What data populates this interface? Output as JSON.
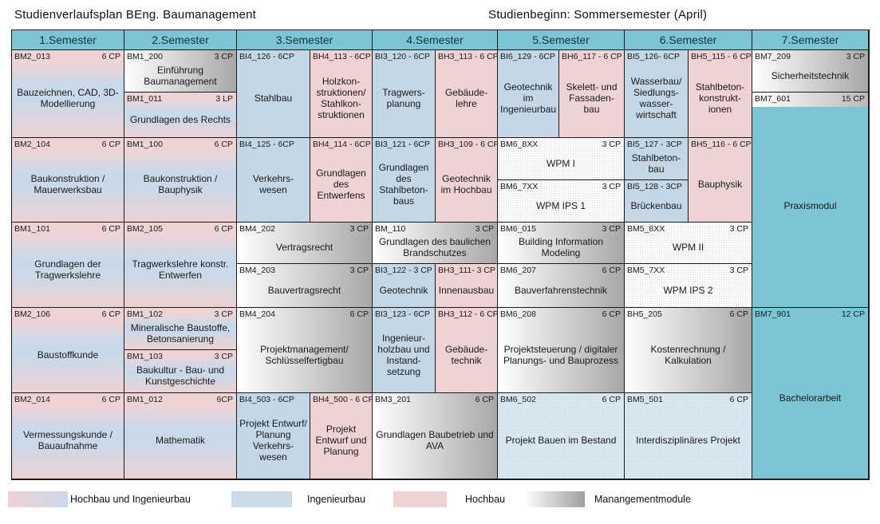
{
  "title_left": "Studienverlaufsplan BEng. Baumanagement",
  "title_right": "Studienbeginn: Sommersemester (April)",
  "semesters": [
    "1.Semester",
    "2.Semester",
    "3.Semester",
    "4.Semester",
    "5.Semester",
    "6.Semester",
    "7.Semester"
  ],
  "colors": {
    "header_teal": "#7bc5d7",
    "ingenieurbau_blue": "#c3d7e7",
    "hochbau_pink": "#efd2d4",
    "management_gray_end": "#a8a8a8",
    "projekt_pale_blue": "#d9e8f0",
    "praxis_teal": "#7bc5d7"
  },
  "legend": [
    {
      "label": "Hochbau und Ingenieurbau",
      "category": "hochbau-und-ingenieurbau"
    },
    {
      "label": "Ingenieurbau",
      "category": "ingenieurbau"
    },
    {
      "label": "Hochbau",
      "category": "hochbau"
    },
    {
      "label": "Manangementmodule",
      "category": "management"
    }
  ],
  "cells": [
    {
      "code": "BM2_013",
      "cp": "6 CP",
      "name": "Bauzeichnen, CAD, 3D-Modellierung",
      "category": "hochbau-und-ingenieurbau"
    },
    {
      "code": "BM1_200",
      "cp": "3 CP",
      "name": "Einführung Baumanagement",
      "category": "management"
    },
    {
      "code": "BM1_011",
      "cp": "3 LP",
      "name": "Grundlagen des Rechts",
      "category": "hochbau-und-ingenieurbau"
    },
    {
      "code": "BI4_126 - 6CP",
      "cp": "",
      "name": "Stahlbau",
      "category": "ingenieurbau"
    },
    {
      "code": "BH4_113 - 6CP",
      "cp": "",
      "name": "Holzkon-struktionen/ Stahlkon-struktionen",
      "category": "hochbau"
    },
    {
      "code": "BI3_120 - 6CP",
      "cp": "",
      "name": "Tragwers-planung",
      "category": "ingenieurbau"
    },
    {
      "code": "BH3_113 - 6 CP",
      "cp": "",
      "name": "Gebäude-lehre",
      "category": "hochbau"
    },
    {
      "code": "BI6_129 - 6CP",
      "cp": "",
      "name": "Geotechnik im Ingenieurbau",
      "category": "ingenieurbau"
    },
    {
      "code": "BH6_117 - 6 CP",
      "cp": "",
      "name": "Skelett- und Fassaden-bau",
      "category": "hochbau"
    },
    {
      "code": "BI5_126- 6CP",
      "cp": "",
      "name": "Wasserbau/ Siedlungs-wasser-wirtschaft",
      "category": "ingenieurbau"
    },
    {
      "code": "BH5_115 - 6 CP",
      "cp": "",
      "name": "Stahlbeton-konstrukt-ionen",
      "category": "hochbau"
    },
    {
      "code": "BM7_209",
      "cp": "3 CP",
      "name": "Sicherheitstechnik",
      "category": "management"
    },
    {
      "code": "BM7_601",
      "cp": "15 CP",
      "name": "Praxismodul",
      "category": "praxis"
    },
    {
      "code": "BM2_104",
      "cp": "6 CP",
      "name": "Baukonstruktion / Mauerwerksbau",
      "category": "hochbau-und-ingenieurbau"
    },
    {
      "code": "BM1_100",
      "cp": "6 CP",
      "name": "Baukonstruktion / Bauphysik",
      "category": "hochbau-und-ingenieurbau"
    },
    {
      "code": "BI4_125 - 6CP",
      "cp": "",
      "name": "Verkehrs-wesen",
      "category": "ingenieurbau"
    },
    {
      "code": "BH4_114 - 6CP",
      "cp": "",
      "name": "Grundlagen des Entwerfens",
      "category": "hochbau"
    },
    {
      "code": "BI3_121 - 6CP",
      "cp": "",
      "name": "Grundlagen des Stahlbeton-baus",
      "category": "ingenieurbau"
    },
    {
      "code": "BH3_109 - 6 CP",
      "cp": "",
      "name": "Geotechnik im Hochbau",
      "category": "hochbau"
    },
    {
      "code": "BM6_8XX",
      "cp": "3 CP",
      "name": "WPM I",
      "category": "wahlpflichtmodul"
    },
    {
      "code": "BM6_7XX",
      "cp": "3 CP",
      "name": "WPM IPS 1",
      "category": "wahlpflichtmodul"
    },
    {
      "code": "BI5_127 - 3CP",
      "cp": "",
      "name": "Stahlbeton-bau",
      "category": "ingenieurbau"
    },
    {
      "code": "BI5_128 - 3CP",
      "cp": "",
      "name": "Brückenbau",
      "category": "ingenieurbau"
    },
    {
      "code": "BH5_116 - 6 CP",
      "cp": "",
      "name": "Bauphysik",
      "category": "hochbau"
    },
    {
      "code": "BM1_101",
      "cp": "6 CP",
      "name": "Grundlagen der Tragwerkslehre",
      "category": "hochbau-und-ingenieurbau"
    },
    {
      "code": "BM2_105",
      "cp": "6 CP",
      "name": "Tragwerkslehre konstr. Entwerfen",
      "category": "hochbau-und-ingenieurbau"
    },
    {
      "code": "BM4_202",
      "cp": "3 CP",
      "name": "Vertragsrecht",
      "category": "management"
    },
    {
      "code": "BM4_203",
      "cp": "3 CP",
      "name": "Bauvertragsrecht",
      "category": "management"
    },
    {
      "code": "BM_110",
      "cp": "3 CP",
      "name": "Grundlagen des baulichen Brandschutzes",
      "category": "management"
    },
    {
      "code": "BI3_122 - 3 CP",
      "cp": "",
      "name": "Geotechnik",
      "category": "ingenieurbau"
    },
    {
      "code": "BH3_111- 3 CP",
      "cp": "",
      "name": "Innenausbau",
      "category": "hochbau"
    },
    {
      "code": "BM6_015",
      "cp": "3 CP",
      "name": "Building Information Modeling",
      "category": "management"
    },
    {
      "code": "BM6_207",
      "cp": "6 CP",
      "name": "Bauverfahrenstechnik",
      "category": "management"
    },
    {
      "code": "BM5_8XX",
      "cp": "3 CP",
      "name": "WPM II",
      "category": "wahlpflichtmodul"
    },
    {
      "code": "BM5_7XX",
      "cp": "3 CP",
      "name": "WPM IPS 2",
      "category": "wahlpflichtmodul"
    },
    {
      "code": "BM2_106",
      "cp": "6 CP",
      "name": "Baustoffkunde",
      "category": "hochbau-und-ingenieurbau"
    },
    {
      "code": "BM1_102",
      "cp": "3 CP",
      "name": "Mineralische Baustoffe, Betonsanierung",
      "category": "hochbau-und-ingenieurbau"
    },
    {
      "code": "BM1_103",
      "cp": "3 CP",
      "name": "Baukultur - Bau- und Kunstgeschichte",
      "category": "hochbau-und-ingenieurbau"
    },
    {
      "code": "BM4_204",
      "cp": "6 CP",
      "name": "Projektmanagement/ Schlüsselfertigbau",
      "category": "management"
    },
    {
      "code": "BI3_123 - 6CP",
      "cp": "",
      "name": "Ingenieur-holzbau und Instand-setzung",
      "category": "ingenieurbau"
    },
    {
      "code": "BH3_112 - 6 CP",
      "cp": "",
      "name": "Gebäude-technik",
      "category": "hochbau"
    },
    {
      "code": "BM6_208",
      "cp": "6 CP",
      "name": "Projektsteuerung / digitaler Planungs- und Bauprozess",
      "category": "management"
    },
    {
      "code": "BH5_205",
      "cp": "6 CP",
      "name": "Kostenrechnung / Kalkulation",
      "category": "management"
    },
    {
      "code": "BM7_901",
      "cp": "12 CP",
      "name": "Bachelorarbeit",
      "category": "thesis"
    },
    {
      "code": "BM2_014",
      "cp": "6 CP",
      "name": "Vermessungskunde / Bauaufnahme",
      "category": "hochbau-und-ingenieurbau"
    },
    {
      "code": "BM1_012",
      "cp": "6CP",
      "name": "Mathematik",
      "category": "hochbau-und-ingenieurbau"
    },
    {
      "code": "BI4_503 - 6CP",
      "cp": "",
      "name": "Projekt Entwurf/ Planung Verkehrs-wesen",
      "category": "ingenieurbau"
    },
    {
      "code": "BH4_500 - 6 CP",
      "cp": "",
      "name": "Projekt Entwurf und Planung",
      "category": "hochbau"
    },
    {
      "code": "BM3_201",
      "cp": "6 CP",
      "name": "Grundlagen Baubetrieb und AVA",
      "category": "management"
    },
    {
      "code": "BM6_502",
      "cp": "6 CP",
      "name": "Projekt Bauen im Bestand",
      "category": "projekt"
    },
    {
      "code": "BM5_501",
      "cp": "6 CP",
      "name": "Interdisziplinäres Projekt",
      "category": "projekt"
    }
  ]
}
